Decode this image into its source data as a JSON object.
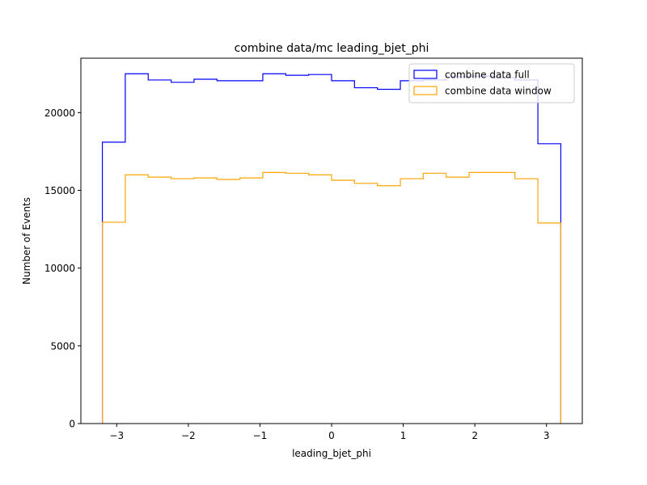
{
  "chart_data": {
    "type": "histogram",
    "title": "combine data/mc leading_bjet_phi",
    "xlabel": "leading_bjet_phi",
    "ylabel": "Number of Events",
    "xlim": [
      -3.5,
      3.5
    ],
    "ylim": [
      0,
      23500
    ],
    "xticks": [
      -3,
      -2,
      -1,
      0,
      1,
      2,
      3
    ],
    "xtick_labels": [
      "−3",
      "−2",
      "−1",
      "0",
      "1",
      "2",
      "3"
    ],
    "yticks": [
      0,
      5000,
      10000,
      15000,
      20000
    ],
    "ytick_labels": [
      "0",
      "5000",
      "10000",
      "15000",
      "20000"
    ],
    "grid": false,
    "legend_position": "top-right",
    "bin_edges": [
      -3.2,
      -2.88,
      -2.56,
      -2.24,
      -1.92,
      -1.6,
      -1.28,
      -0.96,
      -0.64,
      -0.32,
      0.0,
      0.32,
      0.64,
      0.96,
      1.28,
      1.6,
      1.92,
      2.24,
      2.56,
      2.88,
      3.2
    ],
    "series": [
      {
        "name": "combine data full",
        "color": "#0000ff",
        "values": [
          18100,
          22500,
          22100,
          21950,
          22150,
          22050,
          22050,
          22500,
          22400,
          22450,
          22050,
          21600,
          21500,
          22050,
          22100,
          22300,
          22350,
          22250,
          22100,
          18000
        ]
      },
      {
        "name": "combine data window",
        "color": "#ffa500",
        "values": [
          12950,
          16000,
          15850,
          15750,
          15800,
          15700,
          15800,
          16150,
          16100,
          16000,
          15650,
          15450,
          15300,
          15750,
          16100,
          15850,
          16150,
          16150,
          15750,
          12900
        ]
      }
    ]
  }
}
